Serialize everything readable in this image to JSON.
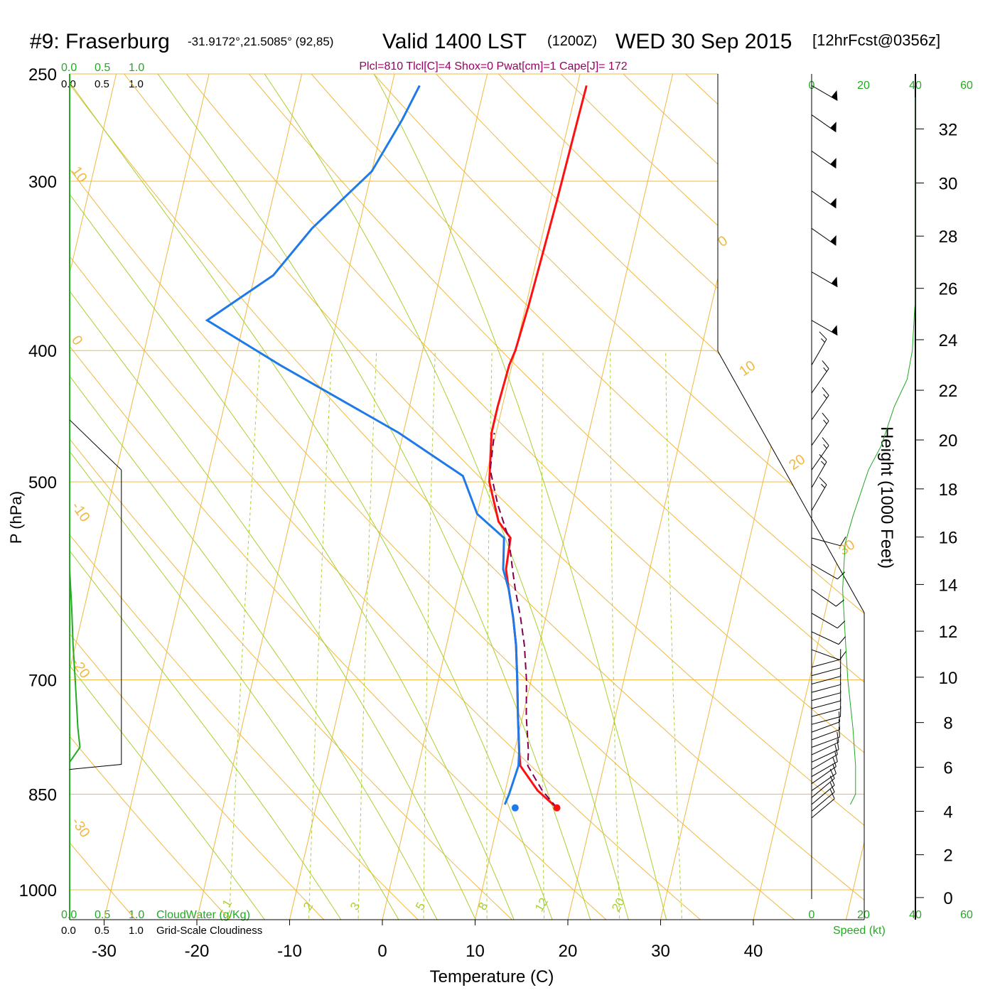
{
  "header": {
    "station": "#9: Fraserburg",
    "coords": "-31.9172°,21.5085° (92,85)",
    "valid": "Valid 1400 LST",
    "utc": "(1200Z)",
    "date": "WED 30 Sep 2015",
    "forecast": "[12hrFcst@0356z]",
    "indices": "Plcl=810 Tlcl[C]=4 Shox=0 Pwat[cm]=1 Cape[J]= 172"
  },
  "colors": {
    "temperature": "#ff1010",
    "dewpoint": "#1f7ae8",
    "parcel": "#800050",
    "isobar": "#f0b840",
    "dry_adiabat": "#f0b840",
    "moist_adiabat": "#a8d030",
    "mixing_ratio": "#a8d030",
    "cloud_water": "#22aa22",
    "cloudiness": "#000000",
    "wind_speed": "#22aa22"
  },
  "chart_data": {
    "type": "line",
    "title": "#9: Fraserburg",
    "xlabel": "Temperature (C)",
    "ylabel": "P (hPa)",
    "y2label": "Height (1000 Feet)",
    "x_ticks": [
      -30,
      -20,
      -10,
      0,
      10,
      20,
      30,
      40
    ],
    "pressure_ticks": [
      250,
      300,
      400,
      500,
      700,
      850,
      1000
    ],
    "pressure_range": [
      250,
      1000
    ],
    "height_ticks": [
      0,
      2,
      4,
      6,
      8,
      10,
      12,
      14,
      16,
      18,
      20,
      22,
      24,
      26,
      28,
      30,
      32
    ],
    "cloud_scale_labels": [
      "0.0",
      "0.5",
      "1.0"
    ],
    "cloud_water_label": "CloudWater (g/Kg)",
    "cloudiness_label": "Grid-Scale Cloudiness",
    "speed_ticks": [
      "0",
      "20",
      "40",
      "60"
    ],
    "speed_label": "Speed (kt)",
    "dry_adiabat_labels": [
      "10",
      "0",
      "-10",
      "-20",
      "-30",
      "0",
      "10",
      "20",
      "30"
    ],
    "mixing_ratio_labels": [
      "1",
      "2",
      "3",
      "5",
      "8",
      "12",
      "20"
    ],
    "series": [
      {
        "key": "temperature",
        "points": [
          [
            16.0,
            870
          ],
          [
            13.5,
            845
          ],
          [
            11.0,
            810
          ],
          [
            10.5,
            790
          ],
          [
            9.5,
            745
          ],
          [
            8.5,
            700
          ],
          [
            7.5,
            660
          ],
          [
            6.5,
            630
          ],
          [
            5.3,
            600
          ],
          [
            4.5,
            580
          ],
          [
            4.2,
            550
          ],
          [
            2.5,
            535
          ],
          [
            0.5,
            500
          ],
          [
            -0.5,
            460
          ],
          [
            -0.5,
            440
          ],
          [
            -0.3,
            410
          ],
          [
            0,
            400
          ],
          [
            0.3,
            370
          ],
          [
            0.5,
            340
          ],
          [
            0.7,
            310
          ],
          [
            0.8,
            290
          ],
          [
            0.9,
            270
          ],
          [
            1.0,
            255
          ]
        ]
      },
      {
        "key": "dewpoint",
        "points": [
          [
            10.3,
            865
          ],
          [
            10.5,
            850
          ],
          [
            10.8,
            810
          ],
          [
            10.5,
            790
          ],
          [
            9.5,
            745
          ],
          [
            8.5,
            700
          ],
          [
            7.5,
            660
          ],
          [
            6.5,
            630
          ],
          [
            5.3,
            600
          ],
          [
            4.2,
            580
          ],
          [
            3.5,
            550
          ],
          [
            0,
            528
          ],
          [
            -2.5,
            495
          ],
          [
            -10.5,
            460
          ],
          [
            -25,
            410
          ],
          [
            -34,
            380
          ],
          [
            -28,
            352
          ],
          [
            -25,
            325
          ],
          [
            -20,
            295
          ],
          [
            -18,
            270
          ],
          [
            -17,
            255
          ]
        ]
      },
      {
        "key": "parcel",
        "points": [
          [
            16.0,
            870
          ],
          [
            14.0,
            845
          ],
          [
            11.8,
            810
          ],
          [
            11.5,
            790
          ],
          [
            10.4,
            745
          ],
          [
            9.5,
            700
          ],
          [
            8.4,
            660
          ],
          [
            7.3,
            630
          ],
          [
            6.0,
            600
          ],
          [
            5.2,
            580
          ],
          [
            4.0,
            550
          ],
          [
            2.0,
            520
          ],
          [
            0.3,
            490
          ],
          [
            -0.2,
            460
          ]
        ]
      }
    ],
    "surface_temperature": [
      16.0,
      870
    ],
    "surface_dewpoint": [
      11.5,
      870
    ],
    "cloud_water": [
      [
        0.0,
        580
      ],
      [
        0.03,
        620
      ],
      [
        0.05,
        660
      ],
      [
        0.08,
        700
      ],
      [
        0.12,
        760
      ],
      [
        0.15,
        785
      ],
      [
        0.0,
        805
      ],
      [
        0.0,
        860
      ]
    ],
    "cloudiness": [
      [
        0.0,
        450
      ],
      [
        0.75,
        490
      ],
      [
        0.75,
        808
      ],
      [
        0.0,
        815
      ]
    ],
    "wind_speed": [
      [
        15,
        865
      ],
      [
        17,
        850
      ],
      [
        17,
        810
      ],
      [
        16,
        760
      ],
      [
        14,
        700
      ],
      [
        13,
        650
      ],
      [
        12,
        600
      ],
      [
        13,
        555
      ],
      [
        16,
        530
      ],
      [
        22,
        490
      ],
      [
        27,
        470
      ],
      [
        32,
        440
      ],
      [
        37,
        420
      ],
      [
        39,
        400
      ],
      [
        40,
        370
      ],
      [
        40,
        340
      ],
      [
        40,
        300
      ],
      [
        40,
        260
      ]
    ],
    "wind_barbs": [
      {
        "p": 885,
        "dir": 230,
        "spd": 10
      },
      {
        "p": 875,
        "dir": 230,
        "spd": 10
      },
      {
        "p": 865,
        "dir": 230,
        "spd": 10
      },
      {
        "p": 855,
        "dir": 230,
        "spd": 10
      },
      {
        "p": 845,
        "dir": 235,
        "spd": 10
      },
      {
        "p": 835,
        "dir": 235,
        "spd": 10
      },
      {
        "p": 825,
        "dir": 240,
        "spd": 10
      },
      {
        "p": 815,
        "dir": 240,
        "spd": 10
      },
      {
        "p": 805,
        "dir": 245,
        "spd": 10
      },
      {
        "p": 795,
        "dir": 245,
        "spd": 10
      },
      {
        "p": 785,
        "dir": 250,
        "spd": 10
      },
      {
        "p": 775,
        "dir": 250,
        "spd": 10
      },
      {
        "p": 765,
        "dir": 250,
        "spd": 10
      },
      {
        "p": 755,
        "dir": 255,
        "spd": 10
      },
      {
        "p": 745,
        "dir": 255,
        "spd": 10
      },
      {
        "p": 735,
        "dir": 255,
        "spd": 10
      },
      {
        "p": 725,
        "dir": 255,
        "spd": 10
      },
      {
        "p": 715,
        "dir": 255,
        "spd": 10
      },
      {
        "p": 705,
        "dir": 255,
        "spd": 10
      },
      {
        "p": 695,
        "dir": 255,
        "spd": 10
      },
      {
        "p": 685,
        "dir": 255,
        "spd": 10
      },
      {
        "p": 665,
        "dir": 290,
        "spd": 10
      },
      {
        "p": 645,
        "dir": 295,
        "spd": 10
      },
      {
        "p": 625,
        "dir": 300,
        "spd": 10
      },
      {
        "p": 600,
        "dir": 305,
        "spd": 10
      },
      {
        "p": 575,
        "dir": 300,
        "spd": 10
      },
      {
        "p": 550,
        "dir": 285,
        "spd": 10
      },
      {
        "p": 525,
        "dir": 210,
        "spd": 15
      },
      {
        "p": 505,
        "dir": 210,
        "spd": 15
      },
      {
        "p": 490,
        "dir": 215,
        "spd": 15
      },
      {
        "p": 470,
        "dir": 215,
        "spd": 15
      },
      {
        "p": 450,
        "dir": 215,
        "spd": 15
      },
      {
        "p": 430,
        "dir": 215,
        "spd": 15
      },
      {
        "p": 410,
        "dir": 210,
        "spd": 15
      },
      {
        "p": 380,
        "dir": 300,
        "spd": 50
      },
      {
        "p": 350,
        "dir": 300,
        "spd": 50
      },
      {
        "p": 325,
        "dir": 305,
        "spd": 50
      },
      {
        "p": 305,
        "dir": 305,
        "spd": 50
      },
      {
        "p": 285,
        "dir": 305,
        "spd": 50
      },
      {
        "p": 268,
        "dir": 305,
        "spd": 50
      },
      {
        "p": 255,
        "dir": 300,
        "spd": 50
      }
    ]
  }
}
